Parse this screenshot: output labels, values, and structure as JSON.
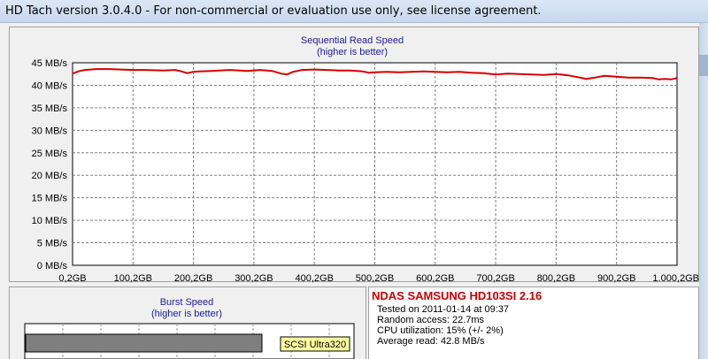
{
  "window": {
    "title": "HD Tach version 3.0.4.0  - For non-commercial or evaluation use only, see license agreement."
  },
  "chart_data": {
    "type": "line",
    "title": "Sequential Read Speed",
    "subtitle": "(higher is better)",
    "ylabel": "",
    "xlabel": "",
    "y_ticks": [
      "0 MB/s",
      "5 MB/s",
      "10 MB/s",
      "15 MB/s",
      "20 MB/s",
      "25 MB/s",
      "30 MB/s",
      "35 MB/s",
      "40 MB/s",
      "45 MB/s"
    ],
    "x_ticks": [
      "0,2GB",
      "100,2GB",
      "200,2GB",
      "300,2GB",
      "400,2GB",
      "500,2GB",
      "600,2GB",
      "700,2GB",
      "800,2GB",
      "900,2GB",
      "1.000,2GB"
    ],
    "ylim": [
      0,
      45
    ],
    "xlim": [
      0.2,
      1000.2
    ],
    "grid": true,
    "line_color": "#d40000",
    "series": [
      {
        "x": [
          0.2,
          10,
          20,
          40,
          60,
          80,
          100,
          120,
          150,
          170,
          180,
          190,
          200,
          210,
          230,
          260,
          290,
          310,
          330,
          345,
          355,
          365,
          380,
          400,
          420,
          440,
          460,
          480,
          490,
          500,
          520,
          540,
          560,
          580,
          600,
          620,
          640,
          660,
          680,
          700,
          720,
          740,
          760,
          780,
          800,
          820,
          840,
          850,
          860,
          880,
          900,
          920,
          940,
          960,
          970,
          980,
          990,
          1000.2
        ],
        "y": [
          42.6,
          43.1,
          43.4,
          43.6,
          43.6,
          43.5,
          43.4,
          43.4,
          43.3,
          43.4,
          43.1,
          42.7,
          43.0,
          43.1,
          43.2,
          43.4,
          43.2,
          43.4,
          43.2,
          42.6,
          42.4,
          43.0,
          43.4,
          43.5,
          43.4,
          43.3,
          43.3,
          43.1,
          42.8,
          42.9,
          43.0,
          42.9,
          43.0,
          43.1,
          43.0,
          42.9,
          43.0,
          42.8,
          42.7,
          42.4,
          42.6,
          42.5,
          42.4,
          42.3,
          42.5,
          42.2,
          41.7,
          41.4,
          41.6,
          42.1,
          41.9,
          41.7,
          41.7,
          41.6,
          41.3,
          41.4,
          41.3,
          41.6
        ]
      }
    ]
  },
  "burst": {
    "title": "Burst Speed",
    "subtitle": "(higher is better)",
    "bar_label": "SCSI Ultra320"
  },
  "info": {
    "drive": "NDAS SAMSUNG HD103SI 2.16",
    "tested": "Tested on 2011-01-14 at 09:37",
    "random": "Random access: 22.7ms",
    "cpu": "CPU utilization: 15% (+/- 2%)",
    "average": "Average read: 42.8 MB/s"
  }
}
